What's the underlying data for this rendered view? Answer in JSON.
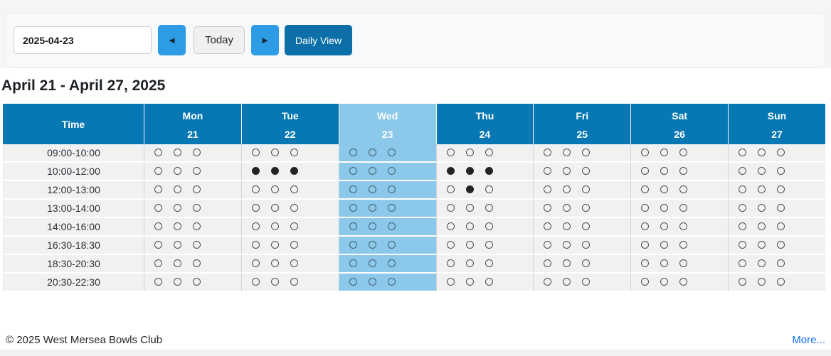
{
  "toolbar": {
    "date_value": "2025-04-23",
    "prev_icon": "◄",
    "next_icon": "►",
    "today_label": "Today",
    "daily_view_label": "Daily View"
  },
  "heading": "April 21 - April 27, 2025",
  "schedule": {
    "time_header": "Time",
    "days": [
      {
        "name": "Mon",
        "date": "21",
        "today": false
      },
      {
        "name": "Tue",
        "date": "22",
        "today": false
      },
      {
        "name": "Wed",
        "date": "23",
        "today": true
      },
      {
        "name": "Thu",
        "date": "24",
        "today": false
      },
      {
        "name": "Fri",
        "date": "25",
        "today": false
      },
      {
        "name": "Sat",
        "date": "26",
        "today": false
      },
      {
        "name": "Sun",
        "date": "27",
        "today": false
      }
    ],
    "rows": [
      {
        "time": "09:00-10:00",
        "slots": [
          [
            0,
            0,
            0
          ],
          [
            0,
            0,
            0
          ],
          [
            0,
            0,
            0
          ],
          [
            0,
            0,
            0
          ],
          [
            0,
            0,
            0
          ],
          [
            0,
            0,
            0
          ],
          [
            0,
            0,
            0
          ]
        ]
      },
      {
        "time": "10:00-12:00",
        "slots": [
          [
            0,
            0,
            0
          ],
          [
            1,
            1,
            1
          ],
          [
            0,
            0,
            0
          ],
          [
            1,
            1,
            1
          ],
          [
            0,
            0,
            0
          ],
          [
            0,
            0,
            0
          ],
          [
            0,
            0,
            0
          ]
        ]
      },
      {
        "time": "12:00-13:00",
        "slots": [
          [
            0,
            0,
            0
          ],
          [
            0,
            0,
            0
          ],
          [
            0,
            0,
            0
          ],
          [
            0,
            1,
            0
          ],
          [
            0,
            0,
            0
          ],
          [
            0,
            0,
            0
          ],
          [
            0,
            0,
            0
          ]
        ]
      },
      {
        "time": "13:00-14:00",
        "slots": [
          [
            0,
            0,
            0
          ],
          [
            0,
            0,
            0
          ],
          [
            0,
            0,
            0
          ],
          [
            0,
            0,
            0
          ],
          [
            0,
            0,
            0
          ],
          [
            0,
            0,
            0
          ],
          [
            0,
            0,
            0
          ]
        ]
      },
      {
        "time": "14:00-16:00",
        "slots": [
          [
            0,
            0,
            0
          ],
          [
            0,
            0,
            0
          ],
          [
            0,
            0,
            0
          ],
          [
            0,
            0,
            0
          ],
          [
            0,
            0,
            0
          ],
          [
            0,
            0,
            0
          ],
          [
            0,
            0,
            0
          ]
        ]
      },
      {
        "time": "16:30-18:30",
        "slots": [
          [
            0,
            0,
            0
          ],
          [
            0,
            0,
            0
          ],
          [
            0,
            0,
            0
          ],
          [
            0,
            0,
            0
          ],
          [
            0,
            0,
            0
          ],
          [
            0,
            0,
            0
          ],
          [
            0,
            0,
            0
          ]
        ]
      },
      {
        "time": "18:30-20:30",
        "slots": [
          [
            0,
            0,
            0
          ],
          [
            0,
            0,
            0
          ],
          [
            0,
            0,
            0
          ],
          [
            0,
            0,
            0
          ],
          [
            0,
            0,
            0
          ],
          [
            0,
            0,
            0
          ],
          [
            0,
            0,
            0
          ]
        ]
      },
      {
        "time": "20:30-22:30",
        "slots": [
          [
            0,
            0,
            0
          ],
          [
            0,
            0,
            0
          ],
          [
            0,
            0,
            0
          ],
          [
            0,
            0,
            0
          ],
          [
            0,
            0,
            0
          ],
          [
            0,
            0,
            0
          ],
          [
            0,
            0,
            0
          ]
        ]
      }
    ]
  },
  "footer": {
    "copyright": "© 2025 West Mersea Bowls Club",
    "more_label": "More..."
  },
  "colors": {
    "header_blue": "#0878b4",
    "today_highlight": "#8bc8e9",
    "nav_button_blue": "#2e9be5",
    "daily_view_blue": "#0d6fa8",
    "link_blue": "#0d6efd"
  }
}
